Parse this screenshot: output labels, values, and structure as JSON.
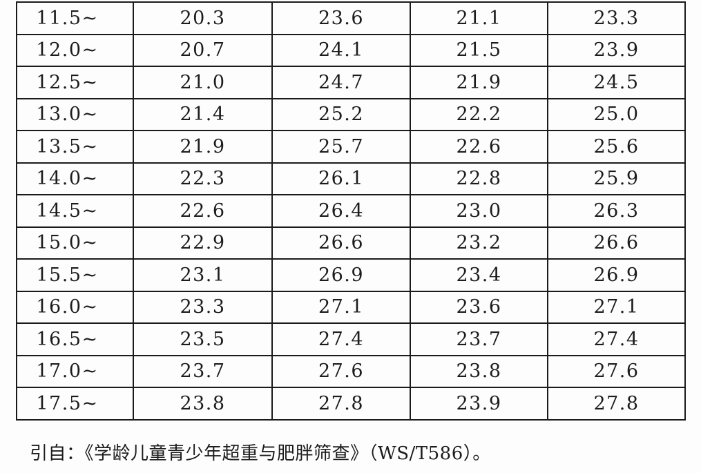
{
  "colors": {
    "border": "#1a1a1a",
    "text": "#1c1c1c",
    "background": "#fdfdfd"
  },
  "table": {
    "rows": [
      {
        "cells": [
          "11.5~",
          "20.3",
          "23.6",
          "21.1",
          "23.3"
        ]
      },
      {
        "cells": [
          "12.0~",
          "20.7",
          "24.1",
          "21.5",
          "23.9"
        ]
      },
      {
        "cells": [
          "12.5~",
          "21.0",
          "24.7",
          "21.9",
          "24.5"
        ]
      },
      {
        "cells": [
          "13.0~",
          "21.4",
          "25.2",
          "22.2",
          "25.0"
        ]
      },
      {
        "cells": [
          "13.5~",
          "21.9",
          "25.7",
          "22.6",
          "25.6"
        ]
      },
      {
        "cells": [
          "14.0~",
          "22.3",
          "26.1",
          "22.8",
          "25.9"
        ]
      },
      {
        "cells": [
          "14.5~",
          "22.6",
          "26.4",
          "23.0",
          "26.3"
        ]
      },
      {
        "cells": [
          "15.0~",
          "22.9",
          "26.6",
          "23.2",
          "26.6"
        ]
      },
      {
        "cells": [
          "15.5~",
          "23.1",
          "26.9",
          "23.4",
          "26.9"
        ]
      },
      {
        "cells": [
          "16.0~",
          "23.3",
          "27.1",
          "23.6",
          "27.1"
        ]
      },
      {
        "cells": [
          "16.5~",
          "23.5",
          "27.4",
          "23.7",
          "27.4"
        ]
      },
      {
        "cells": [
          "17.0~",
          "23.7",
          "27.6",
          "23.8",
          "27.6"
        ]
      },
      {
        "cells": [
          "17.5~",
          "23.8",
          "27.8",
          "23.9",
          "27.8"
        ]
      }
    ]
  },
  "footer": {
    "citation": "引自：《学龄儿童青少年超重与肥胖筛查》（WS/T586）。"
  }
}
